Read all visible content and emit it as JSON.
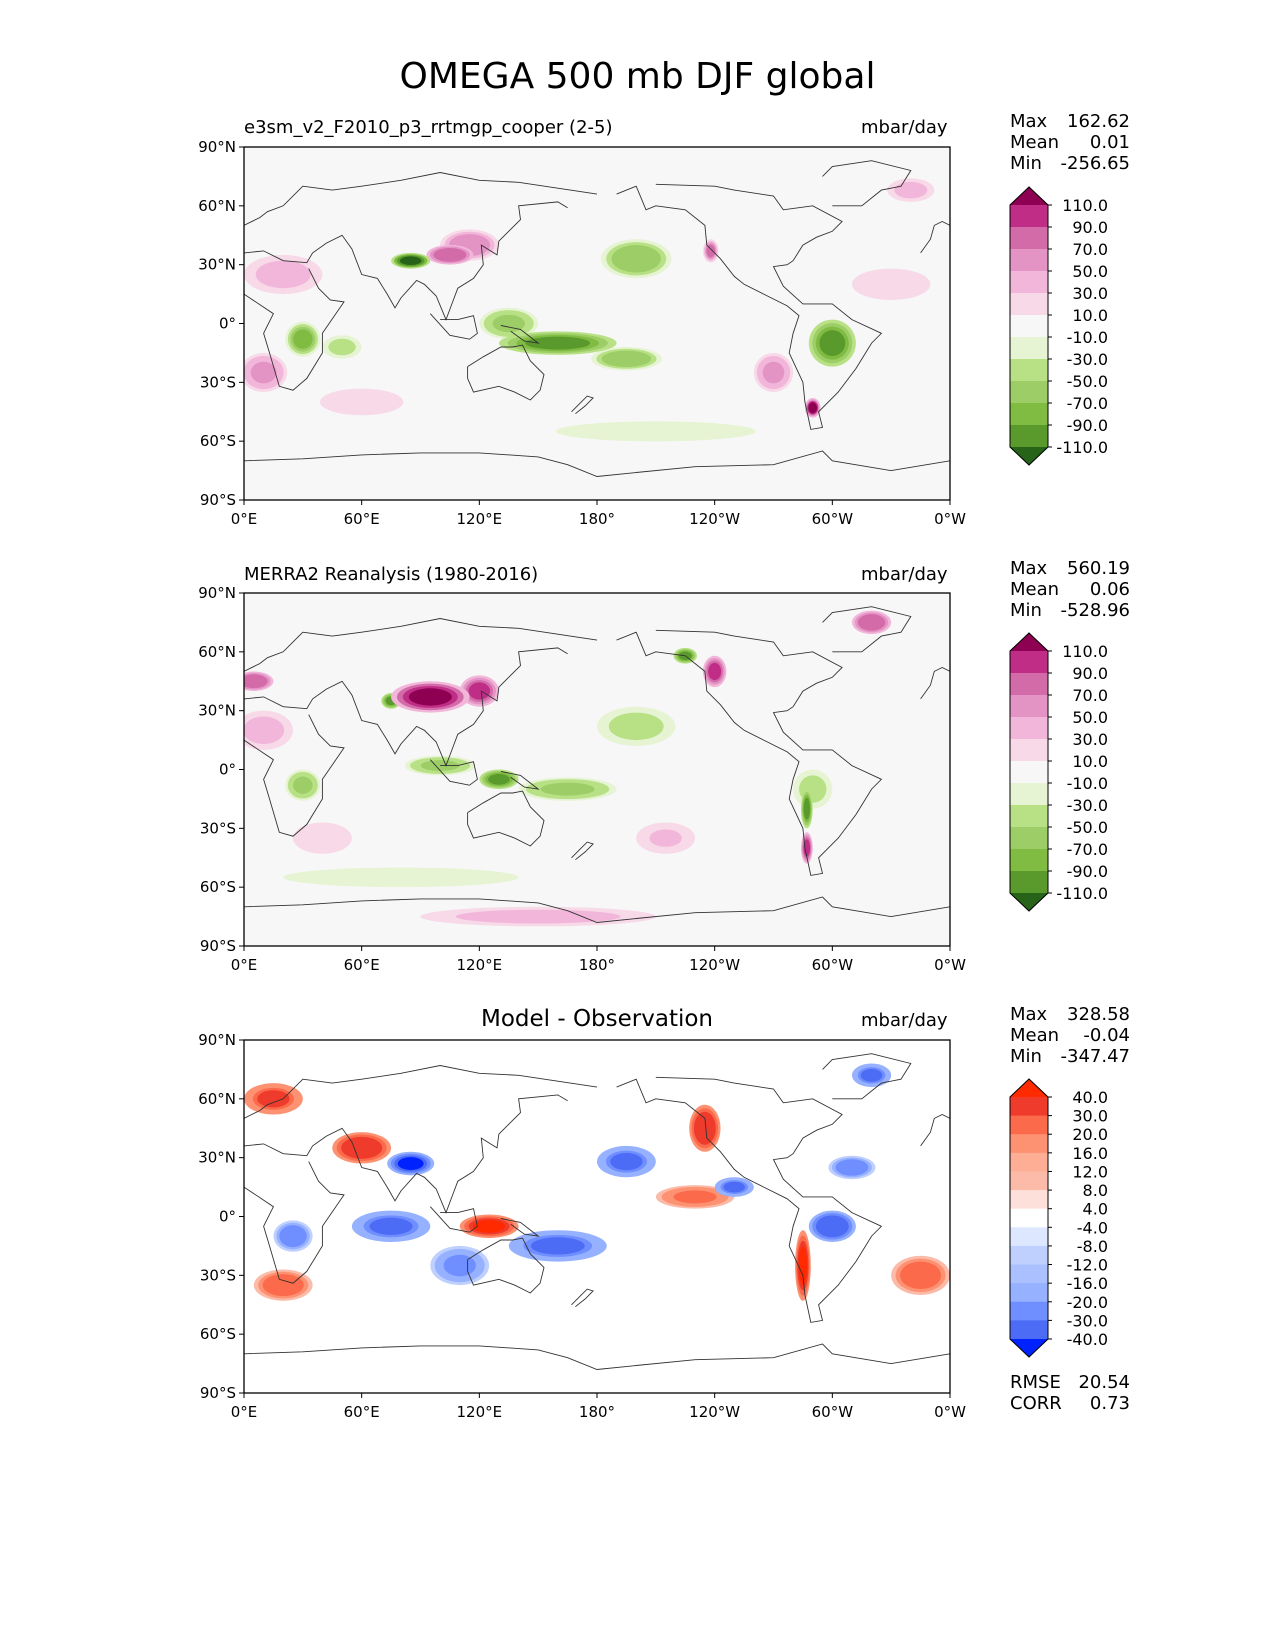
{
  "figure_title": "OMEGA 500 mb DJF global",
  "colors": {
    "seq_pos": [
      "#f7f7f7",
      "#f7d9e8",
      "#f1b6da",
      "#e393c4",
      "#d36ba9",
      "#bf2d87",
      "#8e0152"
    ],
    "seq_neg": [
      "#f7f7f7",
      "#e6f4d3",
      "#b8e186",
      "#9ccd66",
      "#7fbc41",
      "#5a9a2c",
      "#276419"
    ],
    "diff_pos": [
      "#ffffff",
      "#fde0d9",
      "#fcbba8",
      "#fc9272",
      "#fb6a4a",
      "#ef3b2c",
      "#ff2a00"
    ],
    "diff_neg": [
      "#ffffff",
      "#dde7ff",
      "#bfd0ff",
      "#96b1ff",
      "#6f8eff",
      "#4d6cf5",
      "#0022ff"
    ],
    "coast": "#333333"
  },
  "panels": [
    {
      "id": "model",
      "label_left": "e3sm_v2_F2010_p3_rrtmgp_cooper (2-5)",
      "label_right": "mbar/day",
      "center_title": "",
      "stats": {
        "max_label": "Max",
        "max": "162.62",
        "mean_label": "Mean",
        "mean": "0.01",
        "min_label": "Min",
        "min": "-256.65"
      },
      "colorbar_ticks": [
        "110.0",
        "90.0",
        "70.0",
        "50.0",
        "30.0",
        "10.0",
        "-10.0",
        "-30.0",
        "-50.0",
        "-70.0",
        "-90.0",
        "-110.0"
      ]
    },
    {
      "id": "obs",
      "label_left": "MERRA2 Reanalysis (1980-2016)",
      "label_right": "mbar/day",
      "center_title": "",
      "stats": {
        "max_label": "Max",
        "max": "560.19",
        "mean_label": "Mean",
        "mean": "0.06",
        "min_label": "Min",
        "min": "-528.96"
      },
      "colorbar_ticks": [
        "110.0",
        "90.0",
        "70.0",
        "50.0",
        "30.0",
        "10.0",
        "-10.0",
        "-30.0",
        "-50.0",
        "-70.0",
        "-90.0",
        "-110.0"
      ]
    },
    {
      "id": "diff",
      "label_left": "",
      "label_right": "mbar/day",
      "center_title": "Model - Observation",
      "stats": {
        "max_label": "Max",
        "max": "328.58",
        "mean_label": "Mean",
        "mean": "-0.04",
        "min_label": "Min",
        "min": "-347.47"
      },
      "colorbar_ticks": [
        "40.0",
        "30.0",
        "20.0",
        "16.0",
        "12.0",
        "8.0",
        "4.0",
        "-4.0",
        "-8.0",
        "-12.0",
        "-16.0",
        "-20.0",
        "-30.0",
        "-40.0"
      ],
      "metrics": {
        "rmse_label": "RMSE",
        "rmse": "20.54",
        "corr_label": "CORR",
        "corr": "0.73"
      }
    }
  ],
  "chart_data": [
    {
      "type": "heatmap",
      "title": "e3sm_v2_F2010_p3_rrtmgp_cooper (2-5)",
      "units": "mbar/day",
      "x_ticks": [
        "0°E",
        "60°E",
        "120°E",
        "180°",
        "120°W",
        "60°W",
        "0°W"
      ],
      "y_ticks": [
        "90°N",
        "60°N",
        "30°N",
        "0°",
        "30°S",
        "60°S",
        "90°S"
      ],
      "xlim": [
        0,
        360
      ],
      "ylim": [
        -90,
        90
      ],
      "levels": [
        -110,
        -90,
        -70,
        -50,
        -30,
        -10,
        10,
        30,
        50,
        70,
        90,
        110
      ],
      "blobs": [
        {
          "lon": 85,
          "lat": 32,
          "v": -130,
          "rx": 10,
          "ry": 4
        },
        {
          "lon": 105,
          "lat": 35,
          "v": 90,
          "rx": 12,
          "ry": 5
        },
        {
          "lon": 115,
          "lat": 40,
          "v": 70,
          "rx": 15,
          "ry": 8
        },
        {
          "lon": 160,
          "lat": -10,
          "v": -100,
          "rx": 30,
          "ry": 6
        },
        {
          "lon": 195,
          "lat": -18,
          "v": -70,
          "rx": 18,
          "ry": 6
        },
        {
          "lon": 135,
          "lat": 0,
          "v": -60,
          "rx": 15,
          "ry": 8
        },
        {
          "lon": 300,
          "lat": -10,
          "v": -95,
          "rx": 12,
          "ry": 12
        },
        {
          "lon": 290,
          "lat": -43,
          "v": 120,
          "rx": 4,
          "ry": 5
        },
        {
          "lon": 30,
          "lat": -8,
          "v": -75,
          "rx": 9,
          "ry": 9
        },
        {
          "lon": 50,
          "lat": -12,
          "v": -50,
          "rx": 10,
          "ry": 6
        },
        {
          "lon": 200,
          "lat": 33,
          "v": -70,
          "rx": 18,
          "ry": 10
        },
        {
          "lon": 238,
          "lat": 37,
          "v": 80,
          "rx": 4,
          "ry": 6
        },
        {
          "lon": 10,
          "lat": -25,
          "v": 55,
          "rx": 12,
          "ry": 10
        },
        {
          "lon": 270,
          "lat": -25,
          "v": 55,
          "rx": 10,
          "ry": 10
        },
        {
          "lon": 20,
          "lat": 25,
          "v": 40,
          "rx": 20,
          "ry": 10
        },
        {
          "lon": 60,
          "lat": -40,
          "v": 25,
          "rx": 25,
          "ry": 8
        },
        {
          "lon": 330,
          "lat": 20,
          "v": 30,
          "rx": 20,
          "ry": 8
        },
        {
          "lon": 210,
          "lat": -55,
          "v": -25,
          "rx": 60,
          "ry": 6
        },
        {
          "lon": 340,
          "lat": 68,
          "v": 40,
          "rx": 12,
          "ry": 6
        }
      ]
    },
    {
      "type": "heatmap",
      "title": "MERRA2 Reanalysis (1980-2016)",
      "units": "mbar/day",
      "x_ticks": [
        "0°E",
        "60°E",
        "120°E",
        "180°",
        "120°W",
        "60°W",
        "0°W"
      ],
      "y_ticks": [
        "90°N",
        "60°N",
        "30°N",
        "0°",
        "30°S",
        "60°S",
        "90°S"
      ],
      "xlim": [
        0,
        360
      ],
      "ylim": [
        -90,
        90
      ],
      "levels": [
        -110,
        -90,
        -70,
        -50,
        -30,
        -10,
        10,
        30,
        50,
        70,
        90,
        110
      ],
      "blobs": [
        {
          "lon": 95,
          "lat": 37,
          "v": 130,
          "rx": 20,
          "ry": 8
        },
        {
          "lon": 75,
          "lat": 35,
          "v": -110,
          "rx": 5,
          "ry": 4
        },
        {
          "lon": 120,
          "lat": 40,
          "v": 100,
          "rx": 10,
          "ry": 8
        },
        {
          "lon": 130,
          "lat": -5,
          "v": -95,
          "rx": 10,
          "ry": 5
        },
        {
          "lon": 165,
          "lat": -10,
          "v": -60,
          "rx": 25,
          "ry": 6
        },
        {
          "lon": 100,
          "lat": 2,
          "v": -60,
          "rx": 18,
          "ry": 5
        },
        {
          "lon": 240,
          "lat": 50,
          "v": 110,
          "rx": 6,
          "ry": 8
        },
        {
          "lon": 225,
          "lat": 58,
          "v": -100,
          "rx": 6,
          "ry": 4
        },
        {
          "lon": 290,
          "lat": -10,
          "v": -50,
          "rx": 10,
          "ry": 10
        },
        {
          "lon": 287,
          "lat": -40,
          "v": 110,
          "rx": 3,
          "ry": 8
        },
        {
          "lon": 287,
          "lat": -20,
          "v": -100,
          "rx": 3,
          "ry": 10
        },
        {
          "lon": 30,
          "lat": -8,
          "v": -55,
          "rx": 9,
          "ry": 8
        },
        {
          "lon": 5,
          "lat": 45,
          "v": 90,
          "rx": 10,
          "ry": 5
        },
        {
          "lon": 200,
          "lat": 22,
          "v": -45,
          "rx": 20,
          "ry": 10
        },
        {
          "lon": 10,
          "lat": 20,
          "v": 40,
          "rx": 15,
          "ry": 10
        },
        {
          "lon": 40,
          "lat": -35,
          "v": 30,
          "rx": 15,
          "ry": 8
        },
        {
          "lon": 215,
          "lat": -35,
          "v": 35,
          "rx": 15,
          "ry": 8
        },
        {
          "lon": 320,
          "lat": 75,
          "v": 90,
          "rx": 10,
          "ry": 6
        },
        {
          "lon": 80,
          "lat": -55,
          "v": -30,
          "rx": 60,
          "ry": 5
        },
        {
          "lon": 150,
          "lat": -75,
          "v": 50,
          "rx": 60,
          "ry": 5
        }
      ]
    },
    {
      "type": "heatmap",
      "title": "Model - Observation",
      "units": "mbar/day",
      "x_ticks": [
        "0°E",
        "60°E",
        "120°E",
        "180°",
        "120°W",
        "60°W",
        "0°W"
      ],
      "y_ticks": [
        "90°N",
        "60°N",
        "30°N",
        "0°",
        "30°S",
        "60°S",
        "90°S"
      ],
      "xlim": [
        0,
        360
      ],
      "ylim": [
        -90,
        90
      ],
      "levels": [
        -40,
        -30,
        -20,
        -16,
        -12,
        -8,
        -4,
        4,
        8,
        12,
        16,
        20,
        30,
        40
      ],
      "blobs": [
        {
          "lon": 85,
          "lat": 27,
          "v": -45,
          "rx": 12,
          "ry": 6
        },
        {
          "lon": 60,
          "lat": 35,
          "v": 40,
          "rx": 15,
          "ry": 8
        },
        {
          "lon": 125,
          "lat": -5,
          "v": 45,
          "rx": 15,
          "ry": 6
        },
        {
          "lon": 160,
          "lat": -15,
          "v": -35,
          "rx": 25,
          "ry": 8
        },
        {
          "lon": 75,
          "lat": -5,
          "v": -35,
          "rx": 20,
          "ry": 8
        },
        {
          "lon": 25,
          "lat": -10,
          "v": -30,
          "rx": 10,
          "ry": 8
        },
        {
          "lon": 195,
          "lat": 28,
          "v": -35,
          "rx": 15,
          "ry": 8
        },
        {
          "lon": 235,
          "lat": 45,
          "v": 40,
          "rx": 8,
          "ry": 12
        },
        {
          "lon": 300,
          "lat": -5,
          "v": -40,
          "rx": 12,
          "ry": 8
        },
        {
          "lon": 285,
          "lat": -25,
          "v": 45,
          "rx": 4,
          "ry": 18
        },
        {
          "lon": 310,
          "lat": 25,
          "v": -30,
          "rx": 12,
          "ry": 6
        },
        {
          "lon": 250,
          "lat": 15,
          "v": -35,
          "rx": 10,
          "ry": 5
        },
        {
          "lon": 15,
          "lat": 60,
          "v": 35,
          "rx": 15,
          "ry": 8
        },
        {
          "lon": 345,
          "lat": -30,
          "v": 30,
          "rx": 15,
          "ry": 10
        },
        {
          "lon": 20,
          "lat": -35,
          "v": 30,
          "rx": 15,
          "ry": 8
        },
        {
          "lon": 230,
          "lat": 10,
          "v": 25,
          "rx": 20,
          "ry": 6
        },
        {
          "lon": 110,
          "lat": -25,
          "v": -25,
          "rx": 15,
          "ry": 10
        },
        {
          "lon": 320,
          "lat": 72,
          "v": -35,
          "rx": 10,
          "ry": 6
        }
      ]
    }
  ]
}
